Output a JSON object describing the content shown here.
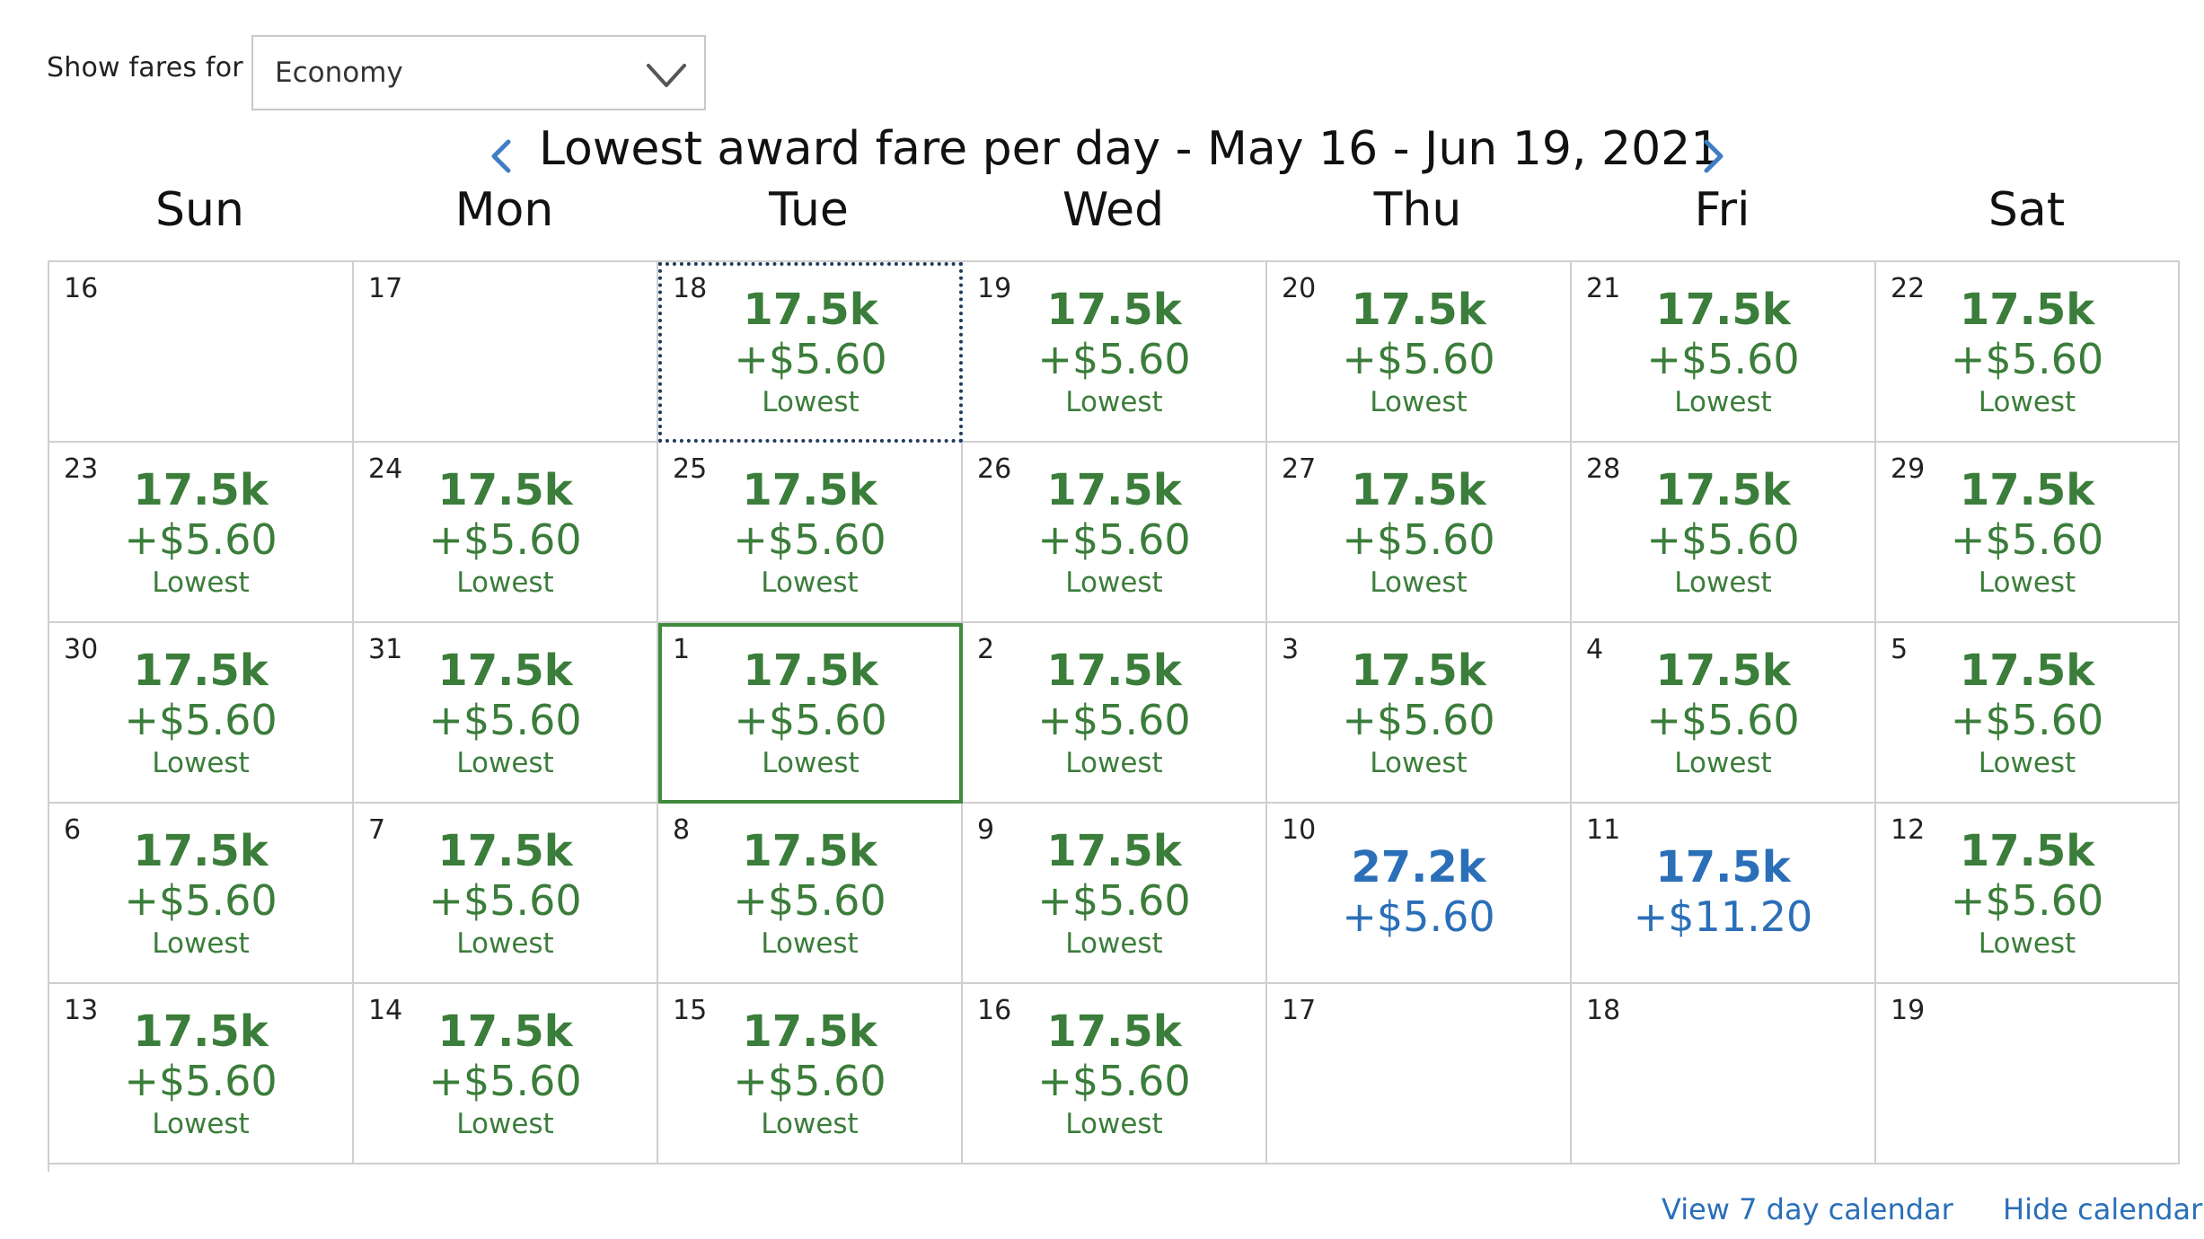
{
  "filter": {
    "label": "Show fares for",
    "selected": "Economy"
  },
  "calendar": {
    "title": "Lowest award fare per day - May 16 - Jun 19, 2021",
    "weekdays": [
      "Sun",
      "Mon",
      "Tue",
      "Wed",
      "Thu",
      "Fri",
      "Sat"
    ],
    "rows": [
      [
        {
          "day": "16"
        },
        {
          "day": "17"
        },
        {
          "day": "18",
          "miles": "17.5k",
          "tax": "+$5.60",
          "flag": "Lowest",
          "state": "focused"
        },
        {
          "day": "19",
          "miles": "17.5k",
          "tax": "+$5.60",
          "flag": "Lowest"
        },
        {
          "day": "20",
          "miles": "17.5k",
          "tax": "+$5.60",
          "flag": "Lowest"
        },
        {
          "day": "21",
          "miles": "17.5k",
          "tax": "+$5.60",
          "flag": "Lowest"
        },
        {
          "day": "22",
          "miles": "17.5k",
          "tax": "+$5.60",
          "flag": "Lowest"
        }
      ],
      [
        {
          "day": "23",
          "miles": "17.5k",
          "tax": "+$5.60",
          "flag": "Lowest"
        },
        {
          "day": "24",
          "miles": "17.5k",
          "tax": "+$5.60",
          "flag": "Lowest"
        },
        {
          "day": "25",
          "miles": "17.5k",
          "tax": "+$5.60",
          "flag": "Lowest"
        },
        {
          "day": "26",
          "miles": "17.5k",
          "tax": "+$5.60",
          "flag": "Lowest"
        },
        {
          "day": "27",
          "miles": "17.5k",
          "tax": "+$5.60",
          "flag": "Lowest"
        },
        {
          "day": "28",
          "miles": "17.5k",
          "tax": "+$5.60",
          "flag": "Lowest"
        },
        {
          "day": "29",
          "miles": "17.5k",
          "tax": "+$5.60",
          "flag": "Lowest"
        }
      ],
      [
        {
          "day": "30",
          "miles": "17.5k",
          "tax": "+$5.60",
          "flag": "Lowest"
        },
        {
          "day": "31",
          "miles": "17.5k",
          "tax": "+$5.60",
          "flag": "Lowest"
        },
        {
          "day": "1",
          "miles": "17.5k",
          "tax": "+$5.60",
          "flag": "Lowest",
          "state": "selected"
        },
        {
          "day": "2",
          "miles": "17.5k",
          "tax": "+$5.60",
          "flag": "Lowest"
        },
        {
          "day": "3",
          "miles": "17.5k",
          "tax": "+$5.60",
          "flag": "Lowest"
        },
        {
          "day": "4",
          "miles": "17.5k",
          "tax": "+$5.60",
          "flag": "Lowest"
        },
        {
          "day": "5",
          "miles": "17.5k",
          "tax": "+$5.60",
          "flag": "Lowest"
        }
      ],
      [
        {
          "day": "6",
          "miles": "17.5k",
          "tax": "+$5.60",
          "flag": "Lowest"
        },
        {
          "day": "7",
          "miles": "17.5k",
          "tax": "+$5.60",
          "flag": "Lowest"
        },
        {
          "day": "8",
          "miles": "17.5k",
          "tax": "+$5.60",
          "flag": "Lowest"
        },
        {
          "day": "9",
          "miles": "17.5k",
          "tax": "+$5.60",
          "flag": "Lowest"
        },
        {
          "day": "10",
          "miles": "27.2k",
          "tax": "+$5.60",
          "color": "blue"
        },
        {
          "day": "11",
          "miles": "17.5k",
          "tax": "+$11.20",
          "color": "blue"
        },
        {
          "day": "12",
          "miles": "17.5k",
          "tax": "+$5.60",
          "flag": "Lowest"
        }
      ],
      [
        {
          "day": "13",
          "miles": "17.5k",
          "tax": "+$5.60",
          "flag": "Lowest"
        },
        {
          "day": "14",
          "miles": "17.5k",
          "tax": "+$5.60",
          "flag": "Lowest"
        },
        {
          "day": "15",
          "miles": "17.5k",
          "tax": "+$5.60",
          "flag": "Lowest"
        },
        {
          "day": "16",
          "miles": "17.5k",
          "tax": "+$5.60",
          "flag": "Lowest"
        },
        {
          "day": "17"
        },
        {
          "day": "18"
        },
        {
          "day": "19"
        }
      ]
    ]
  },
  "links": {
    "seven_day": "View 7 day calendar",
    "hide": "Hide calendar"
  },
  "colors": {
    "lowest_fare": "#3b7d3a",
    "other_fare": "#2a6fb8",
    "link": "#2a6fb8",
    "focus_outline": "#1f3a5c",
    "selected_outline": "#3f8a3c"
  }
}
